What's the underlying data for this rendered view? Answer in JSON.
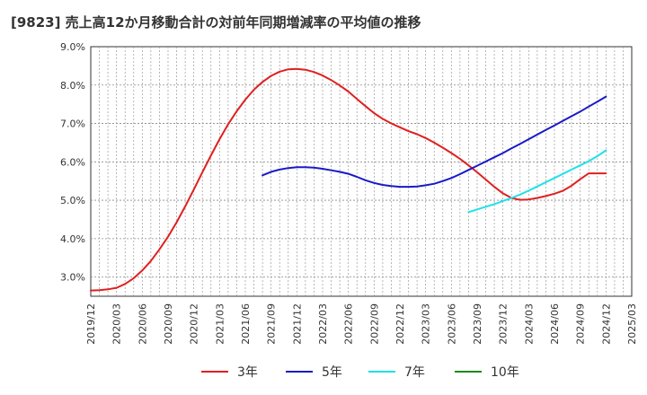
{
  "chart_data": {
    "type": "line",
    "title": "[9823]  売上高12か月移動合計の対前年同期増減率の平均値の推移",
    "xlabel": "",
    "ylabel": "",
    "ylim": [
      2.5,
      9.0
    ],
    "y_ticks": [
      "3.0%",
      "4.0%",
      "5.0%",
      "6.0%",
      "7.0%",
      "8.0%",
      "9.0%"
    ],
    "y_tick_values": [
      3.0,
      4.0,
      5.0,
      6.0,
      7.0,
      8.0,
      9.0
    ],
    "x_ticks": [
      "2019/12",
      "2020/03",
      "2020/06",
      "2020/09",
      "2020/12",
      "2021/03",
      "2021/06",
      "2021/09",
      "2021/12",
      "2022/03",
      "2022/06",
      "2022/09",
      "2022/12",
      "2023/03",
      "2023/06",
      "2023/09",
      "2023/12",
      "2024/03",
      "2024/06",
      "2024/09",
      "2024/12",
      "2025/03"
    ],
    "grid": true,
    "legend_position": "bottom",
    "series": [
      {
        "name": "3年",
        "color": "#e02020",
        "x": [
          "2019/12",
          "2020/01",
          "2020/02",
          "2020/03",
          "2020/04",
          "2020/05",
          "2020/06",
          "2020/07",
          "2020/08",
          "2020/09",
          "2020/10",
          "2020/11",
          "2020/12",
          "2021/01",
          "2021/02",
          "2021/03",
          "2021/04",
          "2021/05",
          "2021/06",
          "2021/07",
          "2021/08",
          "2021/09",
          "2021/10",
          "2021/11",
          "2021/12",
          "2022/01",
          "2022/02",
          "2022/03",
          "2022/04",
          "2022/05",
          "2022/06",
          "2022/07",
          "2022/08",
          "2022/09",
          "2022/10",
          "2022/11",
          "2022/12",
          "2023/01",
          "2023/02",
          "2023/03",
          "2023/04",
          "2023/05",
          "2023/06",
          "2023/07",
          "2023/08",
          "2023/09",
          "2023/10",
          "2023/11",
          "2023/12",
          "2024/01",
          "2024/02",
          "2024/03",
          "2024/04",
          "2024/05",
          "2024/06",
          "2024/07",
          "2024/08",
          "2024/09",
          "2024/10",
          "2024/11",
          "2024/12"
        ],
        "values": [
          2.65,
          2.66,
          2.68,
          2.72,
          2.82,
          2.97,
          3.17,
          3.42,
          3.72,
          4.05,
          4.43,
          4.84,
          5.28,
          5.73,
          6.17,
          6.59,
          6.98,
          7.32,
          7.62,
          7.88,
          8.08,
          8.24,
          8.35,
          8.41,
          8.42,
          8.4,
          8.34,
          8.25,
          8.13,
          7.99,
          7.83,
          7.64,
          7.45,
          7.27,
          7.12,
          7.0,
          6.9,
          6.8,
          6.72,
          6.62,
          6.5,
          6.37,
          6.23,
          6.08,
          5.91,
          5.73,
          5.54,
          5.35,
          5.18,
          5.06,
          5.01,
          5.02,
          5.06,
          5.11,
          5.17,
          5.25,
          5.38,
          5.55,
          5.7,
          5.7,
          5.7
        ]
      },
      {
        "name": "5年",
        "color": "#1a1ac8",
        "x": [
          "2021/08",
          "2021/09",
          "2021/10",
          "2021/11",
          "2021/12",
          "2022/01",
          "2022/02",
          "2022/03",
          "2022/04",
          "2022/05",
          "2022/06",
          "2022/07",
          "2022/08",
          "2022/09",
          "2022/10",
          "2022/11",
          "2022/12",
          "2023/01",
          "2023/02",
          "2023/03",
          "2023/04",
          "2023/05",
          "2023/06",
          "2023/07",
          "2023/08",
          "2023/09",
          "2023/10",
          "2023/11",
          "2023/12",
          "2024/01",
          "2024/02",
          "2024/03",
          "2024/04",
          "2024/05",
          "2024/06",
          "2024/07",
          "2024/08",
          "2024/09",
          "2024/10",
          "2024/11",
          "2024/12"
        ],
        "values": [
          5.65,
          5.74,
          5.8,
          5.84,
          5.86,
          5.86,
          5.85,
          5.82,
          5.78,
          5.74,
          5.69,
          5.61,
          5.52,
          5.45,
          5.4,
          5.37,
          5.35,
          5.35,
          5.36,
          5.39,
          5.43,
          5.5,
          5.58,
          5.68,
          5.79,
          5.9,
          6.01,
          6.12,
          6.23,
          6.35,
          6.47,
          6.59,
          6.71,
          6.83,
          6.95,
          7.07,
          7.19,
          7.31,
          7.44,
          7.57,
          7.7
        ]
      },
      {
        "name": "7年",
        "color": "#20e0e8",
        "x": [
          "2023/08",
          "2023/09",
          "2023/10",
          "2023/11",
          "2023/12",
          "2024/01",
          "2024/02",
          "2024/03",
          "2024/04",
          "2024/05",
          "2024/06",
          "2024/07",
          "2024/08",
          "2024/09",
          "2024/10",
          "2024/11",
          "2024/12"
        ],
        "values": [
          4.69,
          4.76,
          4.83,
          4.9,
          4.98,
          5.06,
          5.15,
          5.25,
          5.36,
          5.47,
          5.58,
          5.69,
          5.8,
          5.91,
          6.02,
          6.15,
          6.3
        ]
      },
      {
        "name": "10年",
        "color": "#1a8a1a",
        "x": [],
        "values": []
      }
    ]
  }
}
